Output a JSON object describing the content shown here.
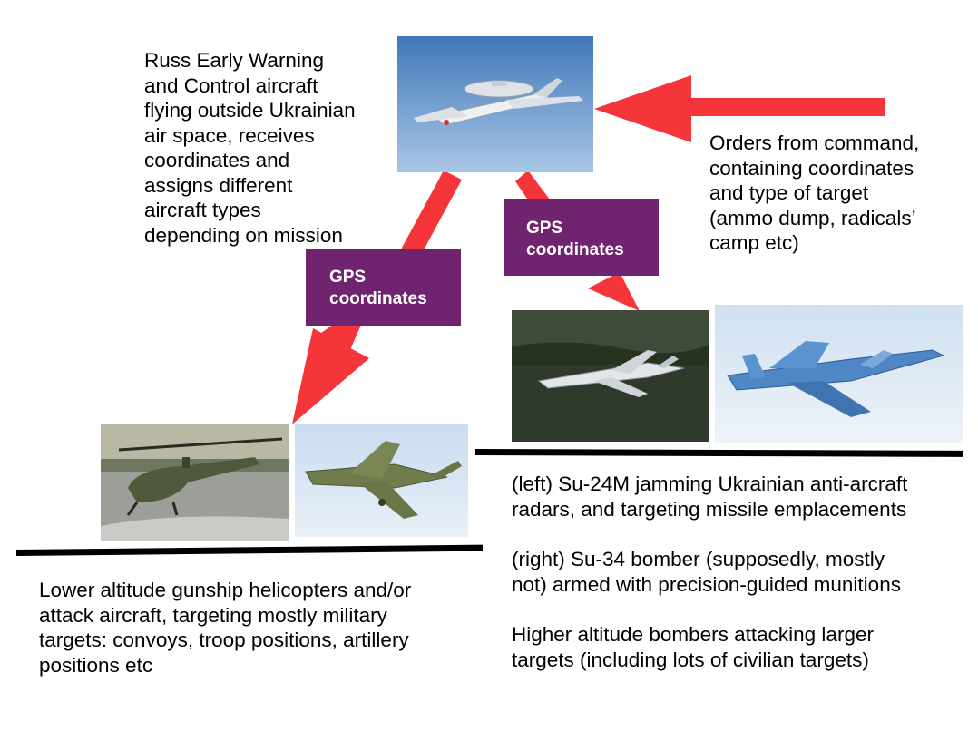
{
  "awacs_text": "Russ Early Warning\nand Control aircraft\nflying outside Ukrainian\nair space, receives\ncoordinates and\nassigns different\naircraft types\ndepending on mission",
  "orders_text": "Orders from command,\ncontaining coordinates\nand type of target\n(ammo dump, radicals’\ncamp etc)",
  "gps_left": "GPS\ncoordinates",
  "gps_right": "GPS\ncoordinates",
  "lower_text": "Lower altitude gunship helicopters and/or\nattack aircraft, targeting mostly military\ntargets: convoys, troop positions, artillery\npositions etc",
  "su24_text": "(left) Su-24M jamming Ukrainian anti-arcraft\nradars, and targeting missile emplacements",
  "su34_text": "(right) Su-34 bomber (supposedly, mostly\nnot) armed with precision-guided munitions",
  "higher_text": "Higher altitude bombers attacking larger\ntargets (including lots of civilian targets)",
  "colors": {
    "arrow": "#f4353a",
    "badge": "#70236e",
    "rule": "#000000"
  }
}
